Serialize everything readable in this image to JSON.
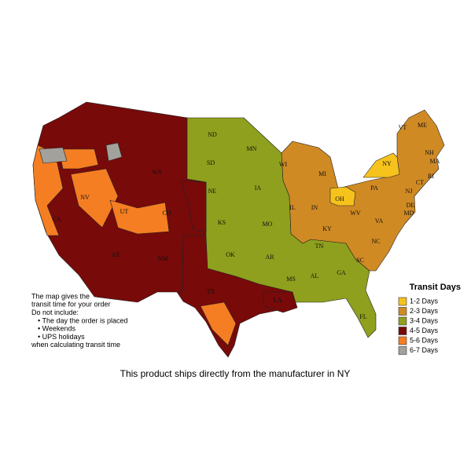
{
  "map": {
    "state_labels": [
      "ND",
      "SD",
      "MN",
      "WI",
      "MI",
      "IA",
      "NE",
      "WY",
      "NV",
      "UT",
      "CO",
      "KS",
      "MO",
      "IL",
      "IN",
      "OH",
      "PA",
      "NY",
      "VT",
      "ME",
      "NH",
      "MA",
      "RI",
      "CT",
      "NJ",
      "DE",
      "MD",
      "WV",
      "VA",
      "KY",
      "TN",
      "NC",
      "SC",
      "GA",
      "AL",
      "MS",
      "AR",
      "OK",
      "TX",
      "LA",
      "FL",
      "NM",
      "AZ",
      "CA"
    ]
  },
  "legend": {
    "title": "Transit Days",
    "items": [
      {
        "label": "1-2 Days",
        "color": "#f6c21c"
      },
      {
        "label": "2-3 Days",
        "color": "#d08a24"
      },
      {
        "label": "3-4 Days",
        "color": "#8fa01e"
      },
      {
        "label": "4-5 Days",
        "color": "#780a0a"
      },
      {
        "label": "5-6 Days",
        "color": "#f57e22"
      },
      {
        "label": "6-7 Days",
        "color": "#a3a19c"
      }
    ]
  },
  "note": {
    "lines": [
      "The map gives the",
      "transit time for your order",
      "Do not include:",
      "• The day the order is placed",
      "• Weekends",
      "• UPS holidays",
      "when calculating transit time"
    ]
  },
  "caption": "This product ships directly from the manufacturer in NY"
}
